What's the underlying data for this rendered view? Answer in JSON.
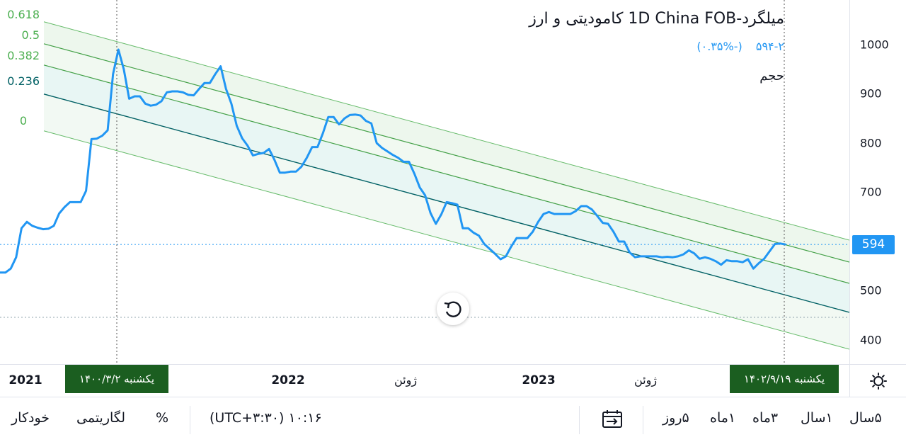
{
  "legend": {
    "title": "میلگرد-1D China FOB کامودیتی و ارز",
    "price": "۵۹۴",
    "change": "-۲ (-۰.۳۵%)",
    "volume_label": "حجم"
  },
  "fib_levels": [
    "0.618",
    "0.5",
    "0.382",
    "0.236",
    "0"
  ],
  "price_tag": "594",
  "y_ticks": [
    "1000",
    "900",
    "800",
    "700",
    "600",
    "500",
    "400"
  ],
  "x_axis": {
    "labels": [
      "2021",
      "2022",
      "ژوئن",
      "2023",
      "ژوئن"
    ],
    "left_date": "یکشنبه ۱۴۰۰/۳/۲",
    "right_date": "یکشنبه ۱۴۰۲/۹/۱۹"
  },
  "toolbar": {
    "ranges": [
      "۵سال",
      "۱سال",
      "۳ماه",
      "۱ماه",
      "۵روز"
    ],
    "time": "۱۰:۱۶ (UTC+۳:۳۰)",
    "percent": "%",
    "log": "لگاریتمی",
    "auto": "خودکار"
  },
  "chart_data": {
    "type": "line",
    "ylim": [
      360,
      1030
    ],
    "y_ticks": [
      400,
      500,
      600,
      700,
      800,
      900,
      1000
    ],
    "x_labels": [
      "2021",
      "2022",
      "ژوئن",
      "2023",
      "ژوئن"
    ],
    "last_value": 594,
    "series": [
      {
        "values": [
          537,
          537,
          545,
          568,
          627,
          640,
          632,
          628,
          625,
          626,
          632,
          657,
          670,
          680,
          680,
          680,
          703,
          808,
          809,
          815,
          826,
          940,
          990,
          950,
          890,
          895,
          895,
          880,
          876,
          878,
          885,
          903,
          905,
          905,
          903,
          898,
          897,
          910,
          922,
          922,
          940,
          956,
          910,
          880,
          835,
          810,
          795,
          775,
          778,
          780,
          788,
          766,
          740,
          740,
          742,
          742,
          752,
          770,
          792,
          792,
          820,
          853,
          853,
          838,
          850,
          857,
          858,
          856,
          845,
          840,
          800,
          790,
          783,
          776,
          770,
          762,
          762,
          738,
          710,
          694,
          658,
          636,
          655,
          680,
          678,
          675,
          627,
          627,
          618,
          612,
          595,
          585,
          575,
          564,
          570,
          590,
          607,
          607,
          607,
          620,
          640,
          656,
          660,
          656,
          656,
          656,
          656,
          662,
          672,
          672,
          665,
          652,
          638,
          636,
          620,
          600,
          600,
          578,
          568,
          570,
          570,
          570,
          570,
          568,
          569,
          568,
          570,
          574,
          582,
          576,
          565,
          568,
          565,
          560,
          553,
          562,
          560,
          560,
          558,
          564,
          545,
          556,
          565,
          580,
          595,
          596,
          594
        ]
      }
    ],
    "fibonacci_channel": {
      "levels": [
        0,
        0.236,
        0.382,
        0.5,
        0.618
      ]
    }
  }
}
